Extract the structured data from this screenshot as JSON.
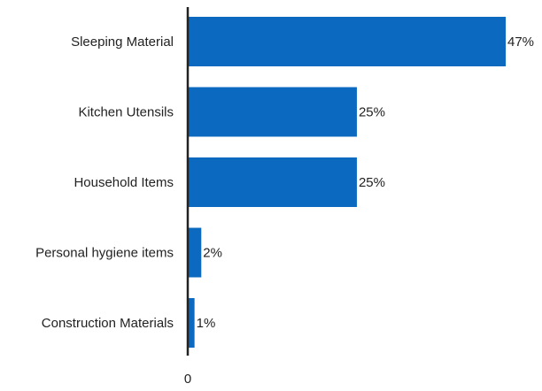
{
  "chart_data": {
    "type": "bar",
    "orientation": "horizontal",
    "categories": [
      "Sleeping Material",
      "Kitchen Utensils",
      "Household Items",
      "Personal hygiene items",
      "Construction Materials"
    ],
    "values": [
      47,
      25,
      25,
      2,
      1
    ],
    "value_labels": [
      "47%",
      "25%",
      "25%",
      "2%",
      "1%"
    ],
    "x_ticks": [
      "0"
    ],
    "xlim": [
      0,
      47
    ],
    "bar_color": "#0b69c0",
    "axis_color": "#222222",
    "grid": false,
    "legend": "none"
  }
}
